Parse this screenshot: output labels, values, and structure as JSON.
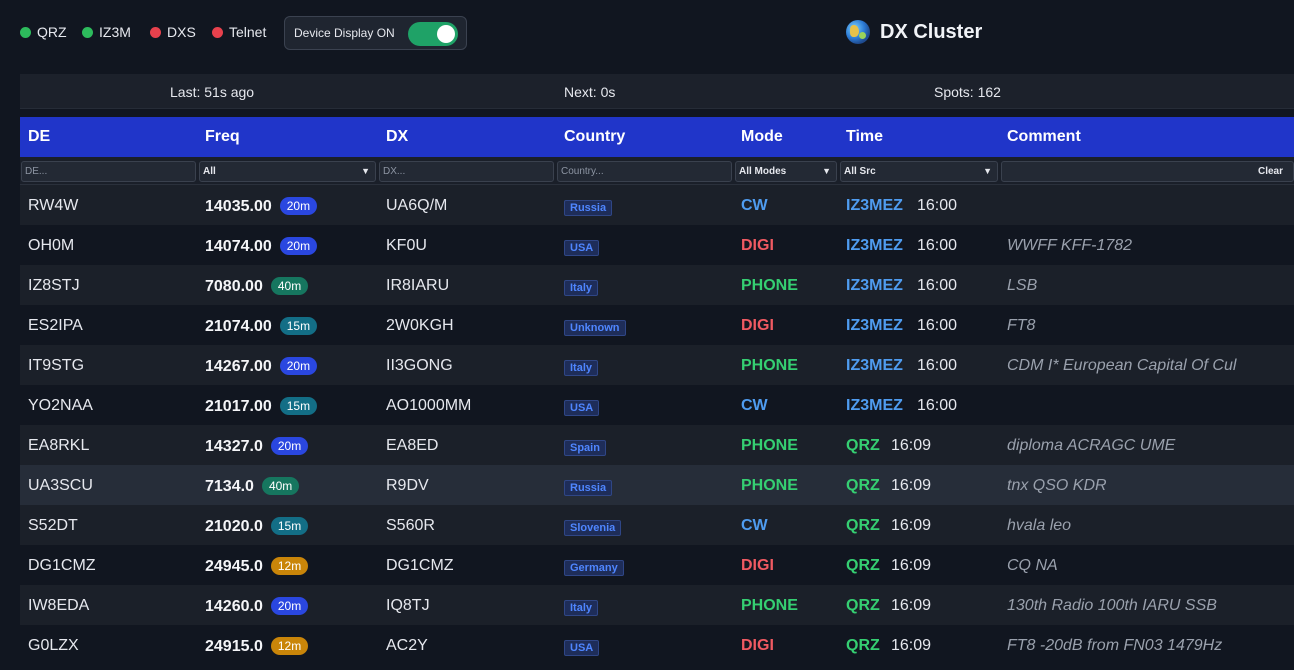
{
  "status": [
    {
      "label": "QRZ",
      "color": "#2dbb5c"
    },
    {
      "label": "IZ3M",
      "color": "#2dbb5c"
    },
    {
      "label": "DXS",
      "color": "#e8414d"
    },
    {
      "label": "Telnet",
      "color": "#e8414d"
    }
  ],
  "device_toggle": {
    "label": "Device Display ON",
    "on": true
  },
  "brand": {
    "title": "DX Cluster"
  },
  "info": {
    "last": "Last: 51s ago",
    "next": "Next: 0s",
    "spots": "Spots: 162"
  },
  "columns": {
    "de": "DE",
    "freq": "Freq",
    "dx": "DX",
    "country": "Country",
    "mode": "Mode",
    "time": "Time",
    "comment": "Comment"
  },
  "filters": {
    "de_placeholder": "DE...",
    "freq_value": "All",
    "dx_placeholder": "DX...",
    "country_placeholder": "Country...",
    "mode_value": "All Modes",
    "src_value": "All Src",
    "clear_label": "Clear"
  },
  "spots": [
    {
      "de": "RW4W",
      "freq": "14035.00",
      "band": "20m",
      "dx": "UA6Q/M",
      "country": "Russia",
      "mode": "CW",
      "src": "IZ3MEZ",
      "time": "16:00",
      "comment": ""
    },
    {
      "de": "OH0M",
      "freq": "14074.00",
      "band": "20m",
      "dx": "KF0U",
      "country": "USA",
      "mode": "DIGI",
      "src": "IZ3MEZ",
      "time": "16:00",
      "comment": "WWFF KFF-1782"
    },
    {
      "de": "IZ8STJ",
      "freq": "7080.00",
      "band": "40m",
      "dx": "IR8IARU",
      "country": "Italy",
      "mode": "PHONE",
      "src": "IZ3MEZ",
      "time": "16:00",
      "comment": "LSB"
    },
    {
      "de": "ES2IPA",
      "freq": "21074.00",
      "band": "15m",
      "dx": "2W0KGH",
      "country": "Unknown",
      "mode": "DIGI",
      "src": "IZ3MEZ",
      "time": "16:00",
      "comment": "FT8"
    },
    {
      "de": "IT9STG",
      "freq": "14267.00",
      "band": "20m",
      "dx": "II3GONG",
      "country": "Italy",
      "mode": "PHONE",
      "src": "IZ3MEZ",
      "time": "16:00",
      "comment": "CDM I* European Capital Of Cul"
    },
    {
      "de": "YO2NAA",
      "freq": "21017.00",
      "band": "15m",
      "dx": "AO1000MM",
      "country": "USA",
      "mode": "CW",
      "src": "IZ3MEZ",
      "time": "16:00",
      "comment": ""
    },
    {
      "de": "EA8RKL",
      "freq": "14327.0",
      "band": "20m",
      "dx": "EA8ED",
      "country": "Spain",
      "mode": "PHONE",
      "src": "QRZ",
      "time": "16:09",
      "comment": "diploma ACRAGC UME"
    },
    {
      "de": "UA3SCU",
      "freq": "7134.0",
      "band": "40m",
      "dx": "R9DV",
      "country": "Russia",
      "mode": "PHONE",
      "src": "QRZ",
      "time": "16:09",
      "comment": "tnx QSO KDR"
    },
    {
      "de": "S52DT",
      "freq": "21020.0",
      "band": "15m",
      "dx": "S560R",
      "country": "Slovenia",
      "mode": "CW",
      "src": "QRZ",
      "time": "16:09",
      "comment": "hvala leo"
    },
    {
      "de": "DG1CMZ",
      "freq": "24945.0",
      "band": "12m",
      "dx": "DG1CMZ",
      "country": "Germany",
      "mode": "DIGI",
      "src": "QRZ",
      "time": "16:09",
      "comment": "CQ NA"
    },
    {
      "de": "IW8EDA",
      "freq": "14260.0",
      "band": "20m",
      "dx": "IQ8TJ",
      "country": "Italy",
      "mode": "PHONE",
      "src": "QRZ",
      "time": "16:09",
      "comment": "130th Radio 100th IARU SSB"
    },
    {
      "de": "G0LZX",
      "freq": "24915.0",
      "band": "12m",
      "dx": "AC2Y",
      "country": "USA",
      "mode": "DIGI",
      "src": "QRZ",
      "time": "16:09",
      "comment": "FT8 -20dB from FN03 1479Hz"
    }
  ]
}
